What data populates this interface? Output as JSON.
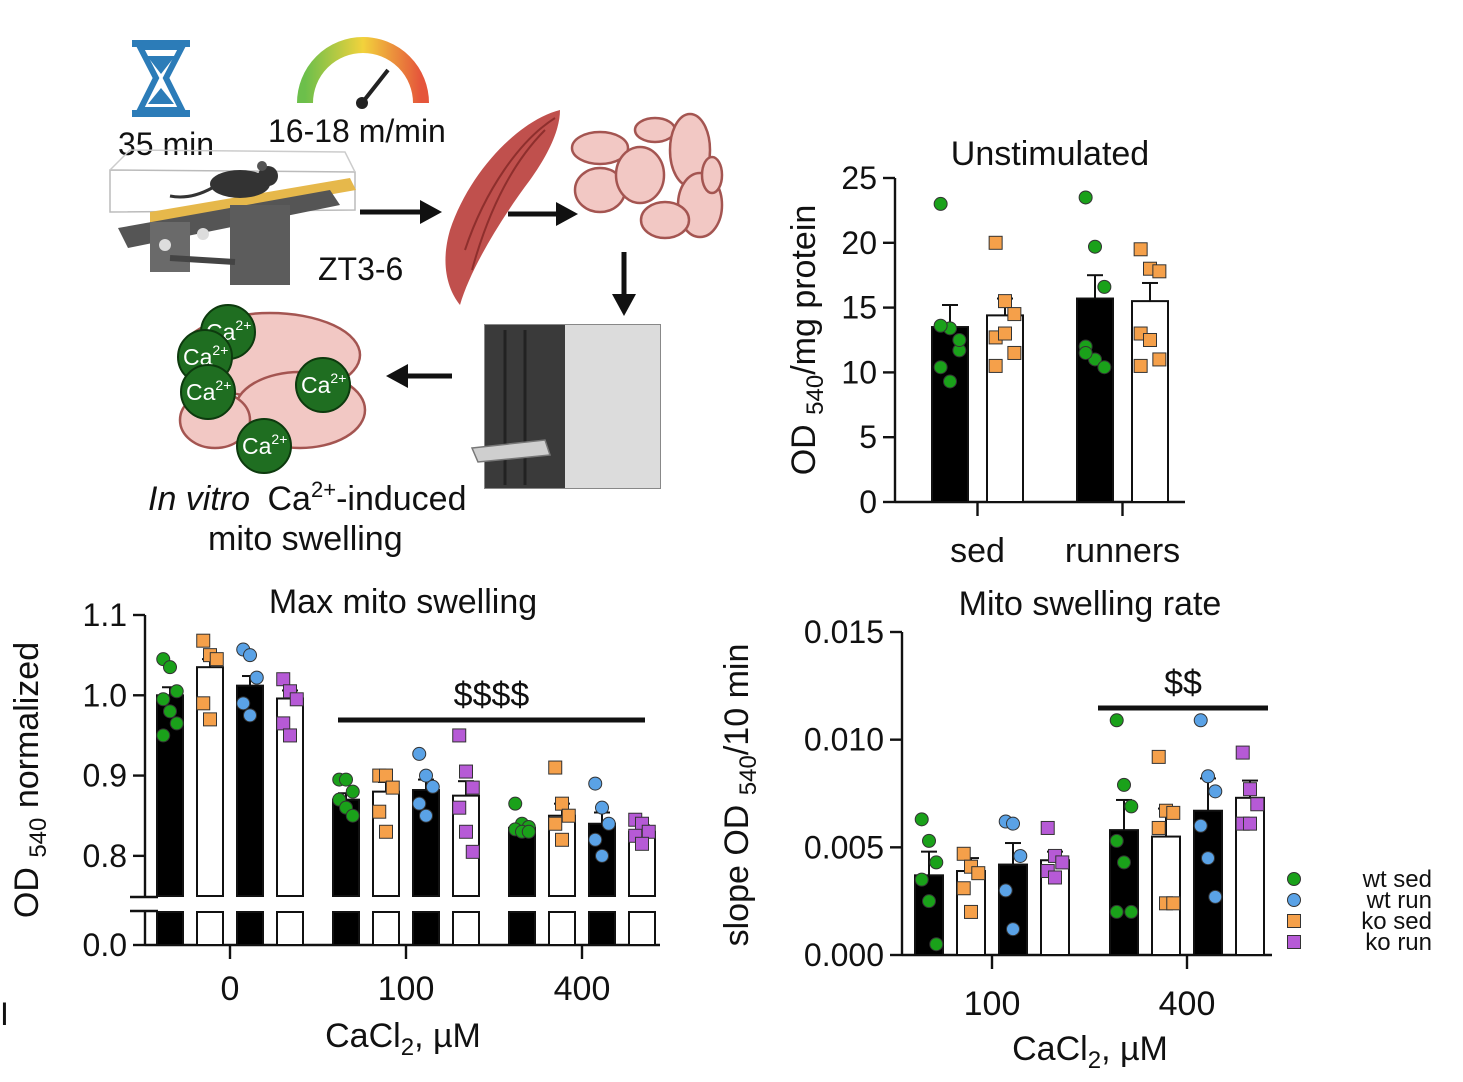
{
  "schematic": {
    "time_label": "35 min",
    "speed_label": "16-18 m/min",
    "zt_label": "ZT3-6",
    "ion_label": "Ca",
    "ion_charge": "2+",
    "caption_italic": "In vitro",
    "caption_ion": "Ca",
    "caption_charge": "2+",
    "caption_rest": "-induced",
    "caption_line2": "mito swelling",
    "colors": {
      "ion_fill": "#1f6e21",
      "muscle": "#c0504d",
      "mito": "#f2c8c4",
      "hourglass": "#2c7cb8"
    }
  },
  "panel_letter": "I",
  "legend": [
    {
      "label": "wt sed",
      "color": "#1aa11a",
      "shape": "circle"
    },
    {
      "label": "wt run",
      "color": "#5aa2e6",
      "shape": "circle"
    },
    {
      "label": "ko sed",
      "color": "#f5a04a",
      "shape": "square"
    },
    {
      "label": "ko run",
      "color": "#b65ad6",
      "shape": "square"
    }
  ],
  "chart_data": [
    {
      "id": "unstimulated",
      "type": "bar",
      "title": "Unstimulated",
      "ylabel": "OD 540/mg protein",
      "ylabel_main": "OD ",
      "ylabel_sub": "540",
      "ylabel_rest": "/mg protein",
      "xlabel": "",
      "categories": [
        "sed",
        "runners"
      ],
      "ylim": [
        0,
        25
      ],
      "yticks": [
        0,
        5,
        10,
        15,
        20,
        25
      ],
      "series": [
        {
          "name": "wt",
          "fill": "#000000",
          "values": [
            13.5,
            15.7
          ],
          "errors": [
            1.7,
            1.8
          ],
          "points": [
            [
              23.0,
              13.4,
              11.7,
              10.4,
              9.3,
              12.5,
              13.6
            ],
            [
              23.5,
              19.7,
              16.6,
              12.0,
              11.0,
              10.4,
              11.5
            ]
          ],
          "point_color": "#1aa11a",
          "point_shape": "circle"
        },
        {
          "name": "ko",
          "fill": "#ffffff",
          "values": [
            14.4,
            15.5
          ],
          "errors": [
            1.3,
            1.4
          ],
          "points": [
            [
              20.0,
              15.5,
              14.5,
              12.7,
              13.0,
              11.5,
              10.5
            ],
            [
              19.5,
              18.0,
              17.8,
              13.0,
              12.5,
              11.0,
              10.5
            ]
          ],
          "point_color": "#f5a04a",
          "point_shape": "square"
        }
      ]
    },
    {
      "id": "max_swelling",
      "type": "bar",
      "title": "Max mito swelling",
      "ylabel": "OD 540 normalized",
      "ylabel_main": "OD ",
      "ylabel_sub": "540",
      "ylabel_rest": " normalized",
      "xlabel": "CaCl2, µM",
      "xlabel_main": "CaCl",
      "xlabel_sub": "2",
      "xlabel_rest": ", µM",
      "categories": [
        "0",
        "100",
        "400"
      ],
      "ylim": [
        0.75,
        1.1
      ],
      "yticks": [
        0.8,
        0.9,
        1.0,
        1.1
      ],
      "ytick_labels": [
        "0.8",
        "0.9",
        "1.0",
        "1.1"
      ],
      "broken_axis": {
        "lower_tick": "0.0"
      },
      "significance": "$$$$",
      "series": [
        {
          "name": "wt sed",
          "fill": "#000000",
          "point_color": "#1aa11a",
          "point_shape": "circle",
          "values": [
            1.0,
            0.87,
            0.835
          ],
          "errors": [
            0.01,
            0.008,
            0.004
          ],
          "points": [
            [
              1.045,
              1.035,
              1.005,
              0.995,
              0.98,
              0.965,
              0.95
            ],
            [
              0.895,
              0.895,
              0.88,
              0.87,
              0.86,
              0.85
            ],
            [
              0.865,
              0.84,
              0.836,
              0.833,
              0.83,
              0.83
            ]
          ]
        },
        {
          "name": "ko sed",
          "fill": "#ffffff",
          "point_color": "#f5a04a",
          "point_shape": "square",
          "values": [
            1.035,
            0.88,
            0.85
          ],
          "errors": [
            0.01,
            0.012,
            0.015
          ],
          "points": [
            [
              1.068,
              1.05,
              1.045,
              0.99,
              0.97
            ],
            [
              0.9,
              0.9,
              0.885,
              0.855,
              0.83
            ],
            [
              0.91,
              0.865,
              0.85,
              0.84,
              0.82
            ]
          ]
        },
        {
          "name": "wt run",
          "fill": "#000000",
          "point_color": "#5aa2e6",
          "point_shape": "circle",
          "values": [
            1.012,
            0.882,
            0.84
          ],
          "errors": [
            0.012,
            0.013,
            0.014
          ],
          "points": [
            [
              1.057,
              1.05,
              1.022,
              0.99,
              0.975
            ],
            [
              0.927,
              0.9,
              0.886,
              0.865,
              0.85
            ],
            [
              0.89,
              0.86,
              0.84,
              0.82,
              0.8
            ]
          ]
        },
        {
          "name": "ko run",
          "fill": "#ffffff",
          "point_color": "#b65ad6",
          "point_shape": "square",
          "values": [
            0.996,
            0.875,
            0.83
          ],
          "errors": [
            0.01,
            0.018,
            0.008
          ],
          "points": [
            [
              1.02,
              1.005,
              0.995,
              0.965,
              0.95
            ],
            [
              0.95,
              0.905,
              0.885,
              0.86,
              0.83,
              0.805
            ],
            [
              0.845,
              0.84,
              0.83,
              0.825,
              0.815
            ]
          ]
        }
      ]
    },
    {
      "id": "swelling_rate",
      "type": "bar",
      "title": "Mito swelling rate",
      "ylabel": "slope OD 540/10 min",
      "ylabel_main": "slope OD ",
      "ylabel_sub": "540",
      "ylabel_rest": "/10 min",
      "xlabel": "CaCl2, µM",
      "xlabel_main": "CaCl",
      "xlabel_sub": "2",
      "xlabel_rest": ", µM",
      "categories": [
        "100",
        "400"
      ],
      "ylim": [
        0,
        0.015
      ],
      "yticks": [
        0,
        0.005,
        0.01,
        0.015
      ],
      "ytick_labels": [
        "0.000",
        "0.005",
        "0.010",
        "0.015"
      ],
      "significance": "$$",
      "series": [
        {
          "name": "wt sed",
          "fill": "#000000",
          "point_color": "#1aa11a",
          "point_shape": "circle",
          "values": [
            0.0037,
            0.0058
          ],
          "errors": [
            0.0011,
            0.0014
          ],
          "points": [
            [
              0.0063,
              0.0053,
              0.0043,
              0.0035,
              0.0025,
              0.0005
            ],
            [
              0.0109,
              0.0079,
              0.0069,
              0.0053,
              0.0043,
              0.002,
              0.002
            ]
          ]
        },
        {
          "name": "ko sed",
          "fill": "#ffffff",
          "point_color": "#f5a04a",
          "point_shape": "square",
          "values": [
            0.0039,
            0.0055
          ],
          "errors": [
            0.0006,
            0.0013
          ],
          "points": [
            [
              0.0047,
              0.0041,
              0.0038,
              0.0031,
              0.002
            ],
            [
              0.0092,
              0.0067,
              0.0066,
              0.0059,
              0.0024,
              0.0024
            ]
          ]
        },
        {
          "name": "wt run",
          "fill": "#000000",
          "point_color": "#5aa2e6",
          "point_shape": "circle",
          "values": [
            0.0042,
            0.0067
          ],
          "errors": [
            0.001,
            0.0015
          ],
          "points": [
            [
              0.0062,
              0.0061,
              0.0046,
              0.003,
              0.0012
            ],
            [
              0.0109,
              0.0083,
              0.0076,
              0.006,
              0.0045,
              0.0027
            ]
          ]
        },
        {
          "name": "ko run",
          "fill": "#ffffff",
          "point_color": "#b65ad6",
          "point_shape": "square",
          "values": [
            0.0044,
            0.0073
          ],
          "errors": [
            0.0004,
            0.0008
          ],
          "points": [
            [
              0.0059,
              0.0046,
              0.0043,
              0.0039,
              0.0036
            ],
            [
              0.0094,
              0.0077,
              0.007,
              0.0061,
              0.0061
            ]
          ]
        }
      ]
    }
  ]
}
